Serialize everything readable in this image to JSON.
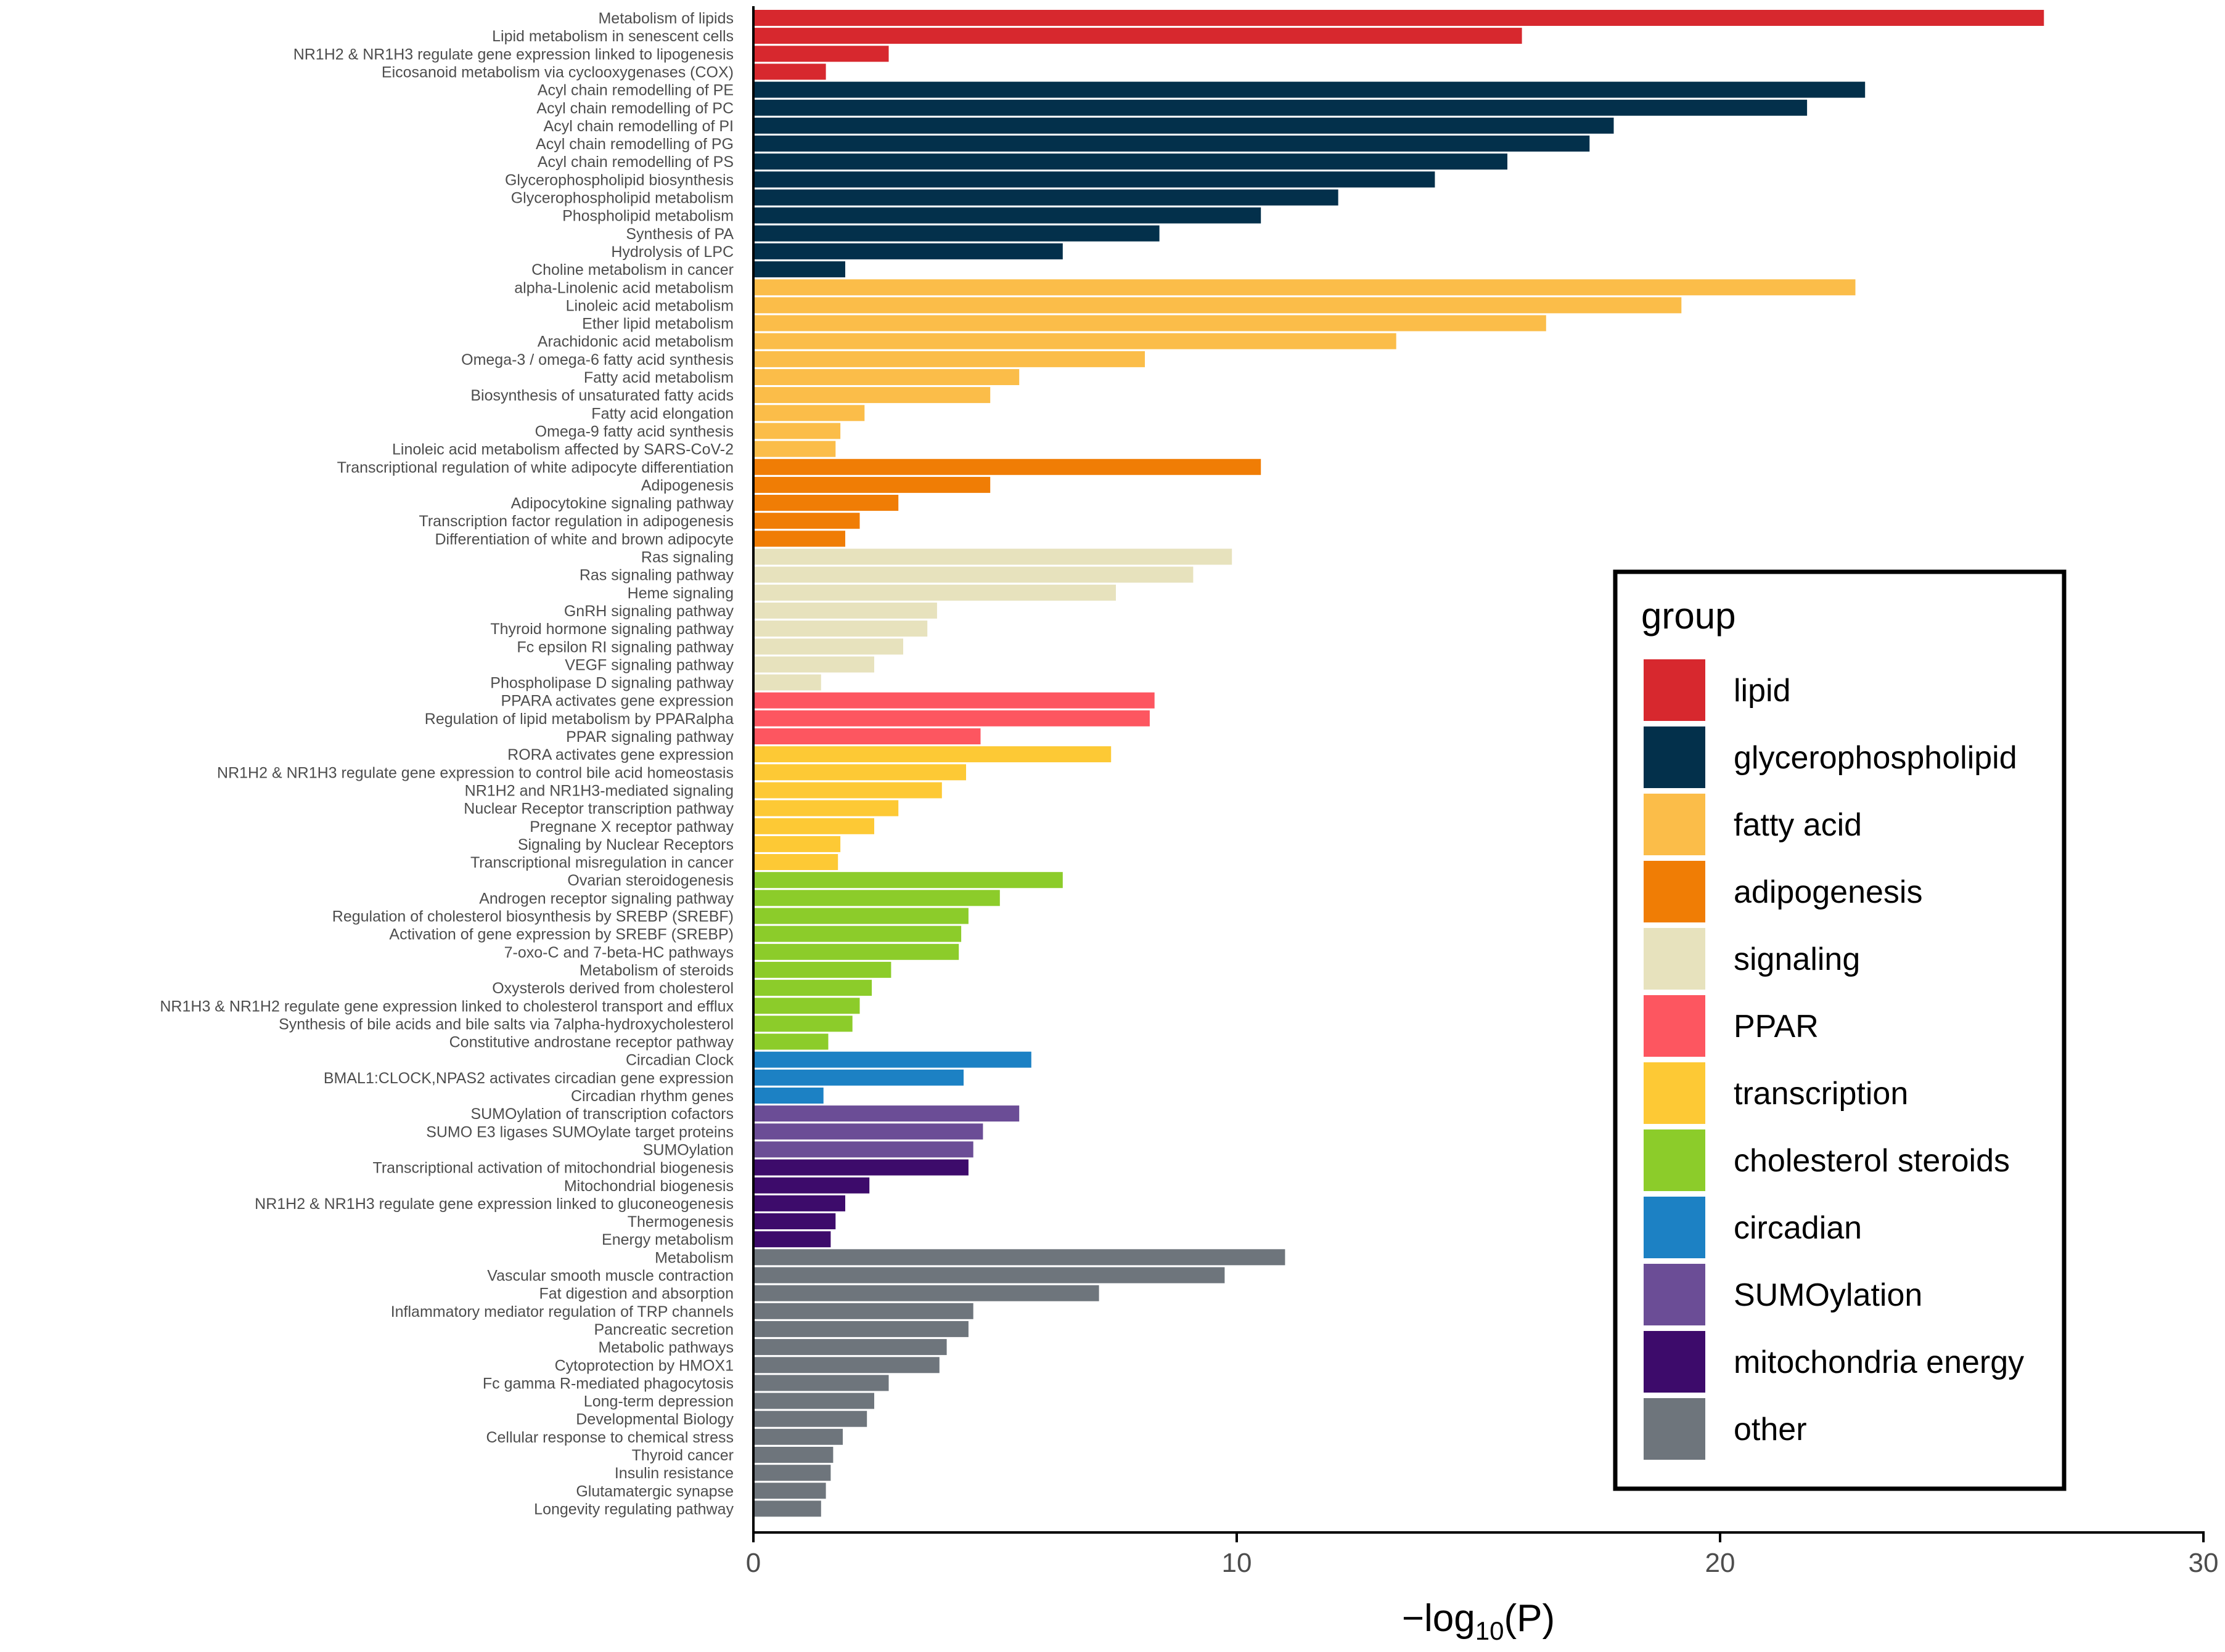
{
  "chart_data": {
    "type": "bar",
    "orientation": "horizontal",
    "xlabel": "-log10(P)",
    "xlim": [
      0,
      30
    ],
    "xticks": [
      0,
      10,
      20,
      30
    ],
    "legend": {
      "title": "group",
      "position": "right",
      "entries": [
        {
          "name": "lipid",
          "color": "#d7282e"
        },
        {
          "name": "glycerophospholipid",
          "color": "#03304b"
        },
        {
          "name": "fatty acid",
          "color": "#fbbd49"
        },
        {
          "name": "adipogenesis",
          "color": "#f07d05"
        },
        {
          "name": "signaling",
          "color": "#e7e2bd"
        },
        {
          "name": "PPAR",
          "color": "#fd5660"
        },
        {
          "name": "transcription",
          "color": "#fdc935"
        },
        {
          "name": "cholesterol steroids",
          "color": "#8ccc2a"
        },
        {
          "name": "circadian",
          "color": "#1c81c4"
        },
        {
          "name": "SUMOylation",
          "color": "#6b4d96"
        },
        {
          "name": "mitochondria energy",
          "color": "#3d0b6b"
        },
        {
          "name": "other",
          "color": "#6e757c"
        }
      ]
    },
    "bars": [
      {
        "label": "Metabolism of lipids",
        "value": 26.7,
        "group": "lipid"
      },
      {
        "label": "Lipid metabolism in senescent cells",
        "value": 15.9,
        "group": "lipid"
      },
      {
        "label": "NR1H2 & NR1H3 regulate gene expression linked to lipogenesis",
        "value": 2.8,
        "group": "lipid"
      },
      {
        "label": "Eicosanoid metabolism via cyclooxygenases (COX)",
        "value": 1.5,
        "group": "lipid"
      },
      {
        "label": "Acyl chain remodelling of PE",
        "value": 23.0,
        "group": "glycerophospholipid"
      },
      {
        "label": "Acyl chain remodelling of PC",
        "value": 21.8,
        "group": "glycerophospholipid"
      },
      {
        "label": "Acyl chain remodelling of PI",
        "value": 17.8,
        "group": "glycerophospholipid"
      },
      {
        "label": "Acyl chain remodelling of PG",
        "value": 17.3,
        "group": "glycerophospholipid"
      },
      {
        "label": "Acyl chain remodelling of PS",
        "value": 15.6,
        "group": "glycerophospholipid"
      },
      {
        "label": "Glycerophospholipid biosynthesis",
        "value": 14.1,
        "group": "glycerophospholipid"
      },
      {
        "label": "Glycerophospholipid metabolism",
        "value": 12.1,
        "group": "glycerophospholipid"
      },
      {
        "label": "Phospholipid metabolism",
        "value": 10.5,
        "group": "glycerophospholipid"
      },
      {
        "label": "Synthesis of PA",
        "value": 8.4,
        "group": "glycerophospholipid"
      },
      {
        "label": "Hydrolysis of LPC",
        "value": 6.4,
        "group": "glycerophospholipid"
      },
      {
        "label": "Choline metabolism in cancer",
        "value": 1.9,
        "group": "glycerophospholipid"
      },
      {
        "label": "alpha-Linolenic acid metabolism",
        "value": 22.8,
        "group": "fatty acid"
      },
      {
        "label": "Linoleic acid metabolism",
        "value": 19.2,
        "group": "fatty acid"
      },
      {
        "label": "Ether lipid metabolism",
        "value": 16.4,
        "group": "fatty acid"
      },
      {
        "label": "Arachidonic acid metabolism",
        "value": 13.3,
        "group": "fatty acid"
      },
      {
        "label": "Omega-3 / omega-6 fatty acid synthesis",
        "value": 8.1,
        "group": "fatty acid"
      },
      {
        "label": "Fatty acid metabolism",
        "value": 5.5,
        "group": "fatty acid"
      },
      {
        "label": "Biosynthesis of unsaturated fatty acids",
        "value": 4.9,
        "group": "fatty acid"
      },
      {
        "label": "Fatty acid elongation",
        "value": 2.3,
        "group": "fatty acid"
      },
      {
        "label": "Omega-9 fatty acid synthesis",
        "value": 1.8,
        "group": "fatty acid"
      },
      {
        "label": "Linoleic acid metabolism affected by SARS-CoV-2",
        "value": 1.7,
        "group": "fatty acid"
      },
      {
        "label": "Transcriptional regulation of white adipocyte differentiation",
        "value": 10.5,
        "group": "adipogenesis"
      },
      {
        "label": "Adipogenesis",
        "value": 4.9,
        "group": "adipogenesis"
      },
      {
        "label": "Adipocytokine signaling pathway",
        "value": 3.0,
        "group": "adipogenesis"
      },
      {
        "label": "Transcription factor regulation in adipogenesis",
        "value": 2.2,
        "group": "adipogenesis"
      },
      {
        "label": "Differentiation of white and brown adipocyte",
        "value": 1.9,
        "group": "adipogenesis"
      },
      {
        "label": "Ras signaling",
        "value": 9.9,
        "group": "signaling"
      },
      {
        "label": "Ras signaling pathway",
        "value": 9.1,
        "group": "signaling"
      },
      {
        "label": "Heme signaling",
        "value": 7.5,
        "group": "signaling"
      },
      {
        "label": "GnRH signaling pathway",
        "value": 3.8,
        "group": "signaling"
      },
      {
        "label": "Thyroid hormone signaling pathway",
        "value": 3.6,
        "group": "signaling"
      },
      {
        "label": "Fc epsilon RI signaling pathway",
        "value": 3.1,
        "group": "signaling"
      },
      {
        "label": "VEGF signaling pathway",
        "value": 2.5,
        "group": "signaling"
      },
      {
        "label": "Phospholipase D signaling pathway",
        "value": 1.4,
        "group": "signaling"
      },
      {
        "label": "PPARA activates gene expression",
        "value": 8.3,
        "group": "PPAR"
      },
      {
        "label": "Regulation of lipid metabolism by PPARalpha",
        "value": 8.2,
        "group": "PPAR"
      },
      {
        "label": "PPAR signaling pathway",
        "value": 4.7,
        "group": "PPAR"
      },
      {
        "label": "RORA activates gene expression",
        "value": 7.4,
        "group": "transcription"
      },
      {
        "label": "NR1H2 & NR1H3 regulate gene expression to control bile acid homeostasis",
        "value": 4.4,
        "group": "transcription"
      },
      {
        "label": "NR1H2 and NR1H3-mediated signaling",
        "value": 3.9,
        "group": "transcription"
      },
      {
        "label": "Nuclear Receptor transcription pathway",
        "value": 3.0,
        "group": "transcription"
      },
      {
        "label": "Pregnane X receptor pathway",
        "value": 2.5,
        "group": "transcription"
      },
      {
        "label": "Signaling by Nuclear Receptors",
        "value": 1.8,
        "group": "transcription"
      },
      {
        "label": "Transcriptional misregulation in cancer",
        "value": 1.75,
        "group": "transcription"
      },
      {
        "label": "Ovarian steroidogenesis",
        "value": 6.4,
        "group": "cholesterol steroids"
      },
      {
        "label": "Androgen receptor signaling pathway",
        "value": 5.1,
        "group": "cholesterol steroids"
      },
      {
        "label": "Regulation of cholesterol biosynthesis by SREBP (SREBF)",
        "value": 4.45,
        "group": "cholesterol steroids"
      },
      {
        "label": "Activation of gene expression by SREBF (SREBP)",
        "value": 4.3,
        "group": "cholesterol steroids"
      },
      {
        "label": "7-oxo-C and 7-beta-HC pathways",
        "value": 4.25,
        "group": "cholesterol steroids"
      },
      {
        "label": "Metabolism of steroids",
        "value": 2.85,
        "group": "cholesterol steroids"
      },
      {
        "label": "Oxysterols derived from cholesterol",
        "value": 2.45,
        "group": "cholesterol steroids"
      },
      {
        "label": "NR1H3 & NR1H2 regulate gene expression linked to cholesterol transport and efflux",
        "value": 2.2,
        "group": "cholesterol steroids"
      },
      {
        "label": "Synthesis of bile acids and bile salts via 7alpha-hydroxycholesterol",
        "value": 2.05,
        "group": "cholesterol steroids"
      },
      {
        "label": "Constitutive androstane receptor pathway",
        "value": 1.55,
        "group": "cholesterol steroids"
      },
      {
        "label": "Circadian Clock",
        "value": 5.75,
        "group": "circadian"
      },
      {
        "label": "BMAL1:CLOCK,NPAS2 activates circadian gene expression",
        "value": 4.35,
        "group": "circadian"
      },
      {
        "label": "Circadian rhythm genes",
        "value": 1.45,
        "group": "circadian"
      },
      {
        "label": "SUMOylation of transcription cofactors",
        "value": 5.5,
        "group": "SUMOylation"
      },
      {
        "label": "SUMO E3 ligases SUMOylate target proteins",
        "value": 4.75,
        "group": "SUMOylation"
      },
      {
        "label": "SUMOylation",
        "value": 4.55,
        "group": "SUMOylation"
      },
      {
        "label": "Transcriptional activation of mitochondrial biogenesis",
        "value": 4.45,
        "group": "mitochondria energy"
      },
      {
        "label": "Mitochondrial biogenesis",
        "value": 2.4,
        "group": "mitochondria energy"
      },
      {
        "label": "NR1H2 & NR1H3 regulate gene expression linked to gluconeogenesis",
        "value": 1.9,
        "group": "mitochondria energy"
      },
      {
        "label": "Thermogenesis",
        "value": 1.7,
        "group": "mitochondria energy"
      },
      {
        "label": "Energy metabolism",
        "value": 1.6,
        "group": "mitochondria energy"
      },
      {
        "label": "Metabolism",
        "value": 11.0,
        "group": "other"
      },
      {
        "label": "Vascular smooth muscle contraction",
        "value": 9.75,
        "group": "other"
      },
      {
        "label": "Fat digestion and absorption",
        "value": 7.15,
        "group": "other"
      },
      {
        "label": "Inflammatory mediator regulation of TRP channels",
        "value": 4.55,
        "group": "other"
      },
      {
        "label": "Pancreatic secretion",
        "value": 4.45,
        "group": "other"
      },
      {
        "label": "Metabolic pathways",
        "value": 4.0,
        "group": "other"
      },
      {
        "label": "Cytoprotection by HMOX1",
        "value": 3.85,
        "group": "other"
      },
      {
        "label": "Fc gamma R-mediated phagocytosis",
        "value": 2.8,
        "group": "other"
      },
      {
        "label": "Long-term depression",
        "value": 2.5,
        "group": "other"
      },
      {
        "label": "Developmental Biology",
        "value": 2.35,
        "group": "other"
      },
      {
        "label": "Cellular response to chemical stress",
        "value": 1.85,
        "group": "other"
      },
      {
        "label": "Thyroid cancer",
        "value": 1.65,
        "group": "other"
      },
      {
        "label": "Insulin resistance",
        "value": 1.6,
        "group": "other"
      },
      {
        "label": "Glutamatergic synapse",
        "value": 1.5,
        "group": "other"
      },
      {
        "label": "Longevity regulating pathway",
        "value": 1.4,
        "group": "other"
      }
    ]
  }
}
